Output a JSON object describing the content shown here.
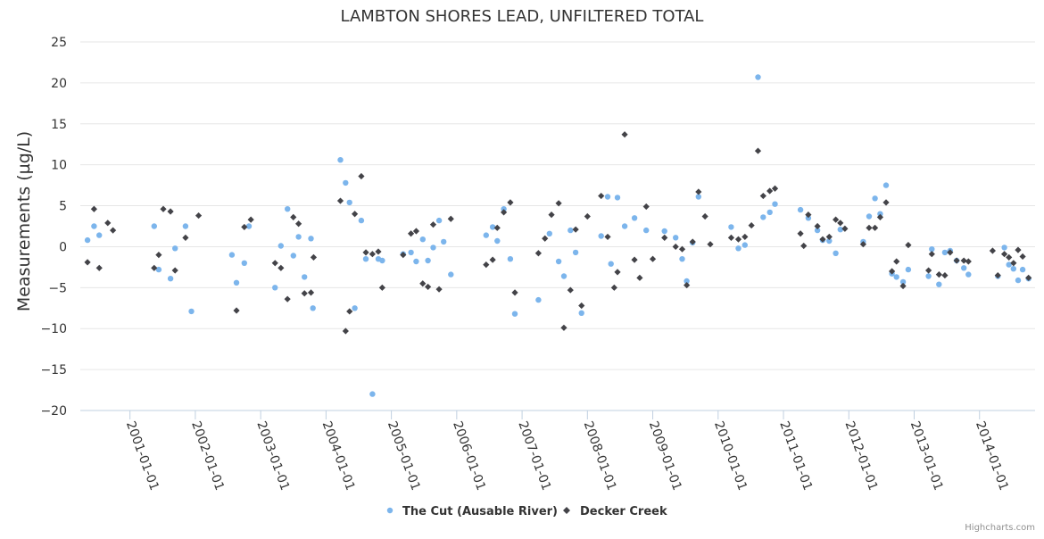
{
  "chart_data": {
    "type": "scatter",
    "title": "LAMBTON SHORES LEAD, UNFILTERED TOTAL",
    "xlabel": "",
    "ylabel": "Measurements (µg/L)",
    "ylim": [
      -20,
      25
    ],
    "yticks": [
      -20,
      -15,
      -10,
      -5,
      0,
      5,
      10,
      15,
      20,
      25
    ],
    "yticklabels": [
      "−20",
      "−15",
      "−10",
      "−5",
      "0",
      "5",
      "10",
      "15",
      "20",
      "25"
    ],
    "xlim": [
      2000.24,
      2014.85
    ],
    "xticks": [
      2001,
      2002,
      2003,
      2004,
      2005,
      2006,
      2007,
      2008,
      2009,
      2010,
      2011,
      2012,
      2013,
      2014
    ],
    "xticklabels": [
      "2001-01-01",
      "2002-01-01",
      "2003-01-01",
      "2004-01-01",
      "2005-01-01",
      "2006-01-01",
      "2007-01-01",
      "2008-01-01",
      "2009-01-01",
      "2010-01-01",
      "2011-01-01",
      "2012-01-01",
      "2013-01-01",
      "2014-01-01"
    ],
    "grid": true,
    "legend": "bottom-center",
    "series": [
      {
        "name": "The Cut (Ausable River)",
        "color": "#7cb5ec",
        "marker": "circle",
        "points": [
          [
            2000.35,
            0.8
          ],
          [
            2000.45,
            2.5
          ],
          [
            2000.53,
            1.4
          ],
          [
            2001.37,
            2.5
          ],
          [
            2001.44,
            -2.8
          ],
          [
            2001.62,
            -3.9
          ],
          [
            2001.69,
            -0.2
          ],
          [
            2001.85,
            2.5
          ],
          [
            2001.94,
            -7.9
          ],
          [
            2002.56,
            -1.0
          ],
          [
            2002.63,
            -4.4
          ],
          [
            2002.75,
            -2.0
          ],
          [
            2002.82,
            2.5
          ],
          [
            2003.22,
            -5.0
          ],
          [
            2003.31,
            0.1
          ],
          [
            2003.41,
            4.6
          ],
          [
            2003.5,
            -1.1
          ],
          [
            2003.58,
            1.2
          ],
          [
            2003.67,
            -3.7
          ],
          [
            2003.77,
            1.0
          ],
          [
            2003.8,
            -7.5
          ],
          [
            2004.22,
            10.6
          ],
          [
            2004.3,
            7.8
          ],
          [
            2004.36,
            5.4
          ],
          [
            2004.44,
            -7.5
          ],
          [
            2004.54,
            3.2
          ],
          [
            2004.61,
            -1.5
          ],
          [
            2004.71,
            -18.0
          ],
          [
            2004.8,
            -1.5
          ],
          [
            2004.86,
            -1.7
          ],
          [
            2005.18,
            -0.9
          ],
          [
            2005.3,
            -0.7
          ],
          [
            2005.38,
            -1.8
          ],
          [
            2005.48,
            0.9
          ],
          [
            2005.56,
            -1.7
          ],
          [
            2005.64,
            -0.1
          ],
          [
            2005.73,
            3.2
          ],
          [
            2005.8,
            0.6
          ],
          [
            2005.91,
            -3.4
          ],
          [
            2006.45,
            1.4
          ],
          [
            2006.55,
            2.4
          ],
          [
            2006.62,
            0.7
          ],
          [
            2006.72,
            4.6
          ],
          [
            2006.82,
            -1.5
          ],
          [
            2006.89,
            -8.2
          ],
          [
            2007.25,
            -6.5
          ],
          [
            2007.42,
            1.6
          ],
          [
            2007.56,
            -1.8
          ],
          [
            2007.64,
            -3.6
          ],
          [
            2007.74,
            2.0
          ],
          [
            2007.82,
            -0.7
          ],
          [
            2007.91,
            -8.1
          ],
          [
            2008.21,
            1.3
          ],
          [
            2008.31,
            6.1
          ],
          [
            2008.36,
            -2.1
          ],
          [
            2008.46,
            6.0
          ],
          [
            2008.57,
            2.5
          ],
          [
            2008.72,
            3.5
          ],
          [
            2008.9,
            2.0
          ],
          [
            2009.18,
            1.9
          ],
          [
            2009.35,
            1.1
          ],
          [
            2009.45,
            -1.5
          ],
          [
            2009.52,
            -4.2
          ],
          [
            2009.61,
            0.5
          ],
          [
            2009.7,
            6.1
          ],
          [
            2010.2,
            2.4
          ],
          [
            2010.31,
            -0.2
          ],
          [
            2010.41,
            0.2
          ],
          [
            2010.61,
            20.7
          ],
          [
            2010.69,
            3.6
          ],
          [
            2010.79,
            4.2
          ],
          [
            2010.87,
            5.2
          ],
          [
            2011.26,
            4.5
          ],
          [
            2011.38,
            3.5
          ],
          [
            2011.52,
            2.0
          ],
          [
            2011.6,
            0.8
          ],
          [
            2011.7,
            0.7
          ],
          [
            2011.8,
            -0.8
          ],
          [
            2011.87,
            2.1
          ],
          [
            2012.22,
            0.6
          ],
          [
            2012.31,
            3.7
          ],
          [
            2012.4,
            5.9
          ],
          [
            2012.48,
            4.0
          ],
          [
            2012.57,
            7.5
          ],
          [
            2012.66,
            -3.3
          ],
          [
            2012.73,
            -3.7
          ],
          [
            2012.83,
            -4.3
          ],
          [
            2012.91,
            -2.8
          ],
          [
            2013.22,
            -3.6
          ],
          [
            2013.27,
            -0.3
          ],
          [
            2013.38,
            -4.6
          ],
          [
            2013.47,
            -0.7
          ],
          [
            2013.55,
            -0.5
          ],
          [
            2013.65,
            -1.7
          ],
          [
            2013.76,
            -2.6
          ],
          [
            2013.83,
            -3.4
          ],
          [
            2014.28,
            -3.6
          ],
          [
            2014.38,
            -0.1
          ],
          [
            2014.45,
            -2.2
          ],
          [
            2014.52,
            -2.7
          ],
          [
            2014.59,
            -4.1
          ],
          [
            2014.66,
            -2.8
          ],
          [
            2014.75,
            -3.9
          ]
        ]
      },
      {
        "name": "Decker Creek",
        "color": "#434348",
        "marker": "diamond",
        "points": [
          [
            2000.35,
            -1.9
          ],
          [
            2000.45,
            4.6
          ],
          [
            2000.53,
            -2.6
          ],
          [
            2000.66,
            2.9
          ],
          [
            2000.74,
            2.0
          ],
          [
            2001.37,
            -2.6
          ],
          [
            2001.44,
            -1.0
          ],
          [
            2001.51,
            4.6
          ],
          [
            2001.62,
            4.3
          ],
          [
            2001.69,
            -2.9
          ],
          [
            2001.85,
            1.1
          ],
          [
            2002.05,
            3.8
          ],
          [
            2002.63,
            -7.8
          ],
          [
            2002.75,
            2.4
          ],
          [
            2002.85,
            3.3
          ],
          [
            2003.22,
            -2.0
          ],
          [
            2003.31,
            -2.6
          ],
          [
            2003.41,
            -6.4
          ],
          [
            2003.5,
            3.6
          ],
          [
            2003.58,
            2.8
          ],
          [
            2003.67,
            -5.7
          ],
          [
            2003.77,
            -5.6
          ],
          [
            2003.81,
            -1.3
          ],
          [
            2004.22,
            5.6
          ],
          [
            2004.3,
            -10.3
          ],
          [
            2004.36,
            -7.9
          ],
          [
            2004.44,
            4.0
          ],
          [
            2004.54,
            8.6
          ],
          [
            2004.61,
            -0.7
          ],
          [
            2004.71,
            -0.9
          ],
          [
            2004.8,
            -0.6
          ],
          [
            2004.86,
            -5.0
          ],
          [
            2005.18,
            -1.0
          ],
          [
            2005.3,
            1.6
          ],
          [
            2005.38,
            1.9
          ],
          [
            2005.48,
            -4.5
          ],
          [
            2005.56,
            -4.9
          ],
          [
            2005.64,
            2.7
          ],
          [
            2005.73,
            -5.2
          ],
          [
            2005.91,
            3.4
          ],
          [
            2006.45,
            -2.2
          ],
          [
            2006.55,
            -1.6
          ],
          [
            2006.62,
            2.3
          ],
          [
            2006.72,
            4.2
          ],
          [
            2006.82,
            5.4
          ],
          [
            2006.89,
            -5.6
          ],
          [
            2007.25,
            -0.8
          ],
          [
            2007.35,
            1.0
          ],
          [
            2007.45,
            3.9
          ],
          [
            2007.56,
            5.3
          ],
          [
            2007.64,
            -9.9
          ],
          [
            2007.74,
            -5.3
          ],
          [
            2007.82,
            2.1
          ],
          [
            2007.91,
            -7.2
          ],
          [
            2008.0,
            3.7
          ],
          [
            2008.21,
            6.2
          ],
          [
            2008.31,
            1.2
          ],
          [
            2008.41,
            -5.0
          ],
          [
            2008.46,
            -3.1
          ],
          [
            2008.57,
            13.7
          ],
          [
            2008.72,
            -1.6
          ],
          [
            2008.8,
            -3.8
          ],
          [
            2008.9,
            4.9
          ],
          [
            2009.0,
            -1.5
          ],
          [
            2009.18,
            1.1
          ],
          [
            2009.35,
            0.0
          ],
          [
            2009.45,
            -0.3
          ],
          [
            2009.52,
            -4.7
          ],
          [
            2009.61,
            0.6
          ],
          [
            2009.7,
            6.7
          ],
          [
            2009.8,
            3.7
          ],
          [
            2009.88,
            0.3
          ],
          [
            2010.2,
            1.1
          ],
          [
            2010.31,
            0.9
          ],
          [
            2010.41,
            1.2
          ],
          [
            2010.51,
            2.6
          ],
          [
            2010.61,
            11.7
          ],
          [
            2010.69,
            6.2
          ],
          [
            2010.79,
            6.8
          ],
          [
            2010.87,
            7.1
          ],
          [
            2011.26,
            1.6
          ],
          [
            2011.31,
            0.1
          ],
          [
            2011.38,
            3.9
          ],
          [
            2011.52,
            2.5
          ],
          [
            2011.6,
            0.9
          ],
          [
            2011.7,
            1.2
          ],
          [
            2011.8,
            3.3
          ],
          [
            2011.87,
            2.9
          ],
          [
            2011.94,
            2.2
          ],
          [
            2012.22,
            0.3
          ],
          [
            2012.31,
            2.3
          ],
          [
            2012.4,
            2.3
          ],
          [
            2012.48,
            3.6
          ],
          [
            2012.57,
            5.4
          ],
          [
            2012.66,
            -3.0
          ],
          [
            2012.73,
            -1.8
          ],
          [
            2012.83,
            -4.8
          ],
          [
            2012.91,
            0.2
          ],
          [
            2013.22,
            -2.9
          ],
          [
            2013.27,
            -0.9
          ],
          [
            2013.38,
            -3.4
          ],
          [
            2013.47,
            -3.5
          ],
          [
            2013.55,
            -0.7
          ],
          [
            2013.65,
            -1.7
          ],
          [
            2013.76,
            -1.7
          ],
          [
            2013.83,
            -1.8
          ],
          [
            2014.2,
            -0.5
          ],
          [
            2014.28,
            -3.5
          ],
          [
            2014.38,
            -0.9
          ],
          [
            2014.45,
            -1.3
          ],
          [
            2014.52,
            -2.0
          ],
          [
            2014.59,
            -0.4
          ],
          [
            2014.66,
            -1.2
          ],
          [
            2014.75,
            -3.8
          ]
        ]
      }
    ]
  },
  "credits": "Highcharts.com"
}
